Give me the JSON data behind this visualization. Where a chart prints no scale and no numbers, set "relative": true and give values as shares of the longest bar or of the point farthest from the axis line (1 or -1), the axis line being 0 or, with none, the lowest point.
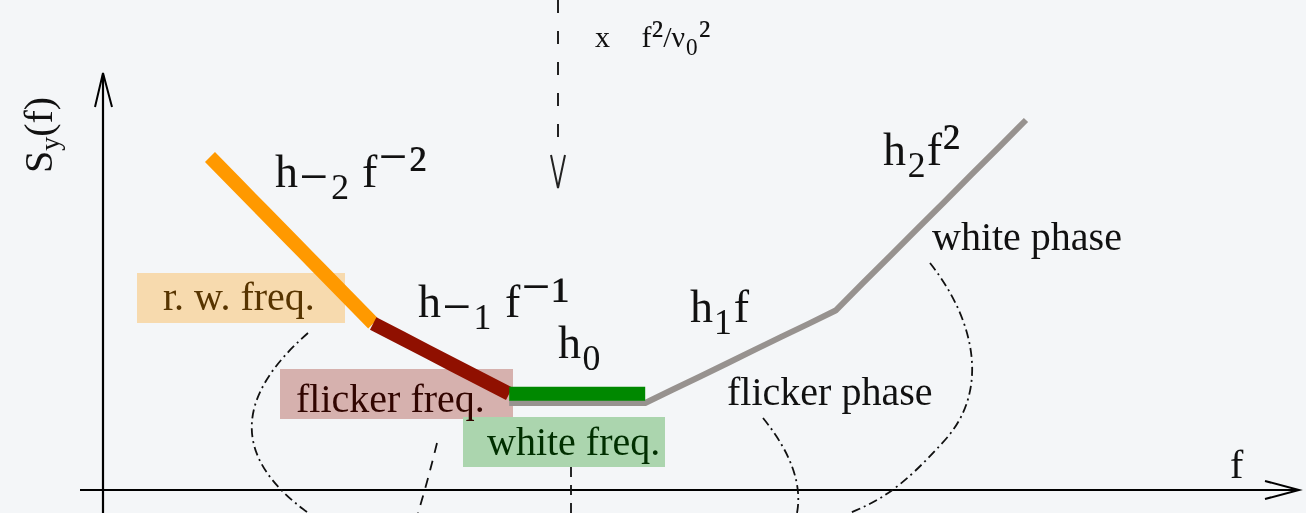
{
  "chart_data": {
    "type": "line",
    "relative": true,
    "xlabel": "f",
    "ylabel": "S$_{y}$(f)",
    "categories": [
      null,
      null,
      null,
      null,
      null,
      null,
      null,
      null,
      null,
      null,
      null,
      null,
      null,
      null,
      null,
      null,
      null,
      null,
      null,
      null,
      null,
      null,
      null,
      null,
      null,
      null,
      null,
      null,
      null,
      null,
      null
    ],
    "series": [
      {
        "color": "#97928f",
        "values": [
          null,
          null,
          null,
          null,
          null,
          null,
          null,
          null,
          null,
          null,
          null,
          0.235,
          0.235,
          0.235,
          0.235,
          0.235,
          0.235,
          0.271,
          0.306,
          0.342,
          0.378,
          0.414,
          0.449,
          0.485,
          0.559,
          0.632,
          0.706,
          0.779,
          0.853,
          0.926,
          1
        ]
      },
      {
        "name": "r. w. freq.",
        "color": "#ff9900",
        "values": [
          0.9,
          0.825,
          0.75,
          0.675,
          0.6,
          0.525,
          0.45,
          null,
          null,
          null,
          null,
          null,
          null,
          null,
          null,
          null,
          null,
          null,
          null,
          null,
          null,
          null,
          null,
          null,
          null,
          null,
          null,
          null,
          null,
          null,
          null
        ]
      },
      {
        "name": "flicker freq.",
        "color": "#901000",
        "values": [
          null,
          null,
          null,
          null,
          null,
          null,
          0.45,
          0.412,
          0.374,
          0.336,
          0.298,
          0.26,
          null,
          null,
          null,
          null,
          null,
          null,
          null,
          null,
          null,
          null,
          null,
          null,
          null,
          null,
          null,
          null,
          null,
          null,
          null
        ]
      },
      {
        "name": "white freq.",
        "color": "#008800",
        "values": [
          null,
          null,
          null,
          null,
          null,
          null,
          null,
          null,
          null,
          null,
          null,
          0.26,
          0.26,
          0.26,
          0.26,
          0.26,
          0.26,
          null,
          null,
          null,
          null,
          null,
          null,
          null,
          null,
          null,
          null,
          null,
          null,
          null,
          null
        ]
      }
    ],
    "annotations": [
      "x f²/ν₀²",
      "h₋₂ f⁻²",
      "h₋₁ f⁻¹",
      "h₀",
      "h₁f",
      "h₂f²",
      "flicker phase",
      "white phase"
    ]
  }
}
